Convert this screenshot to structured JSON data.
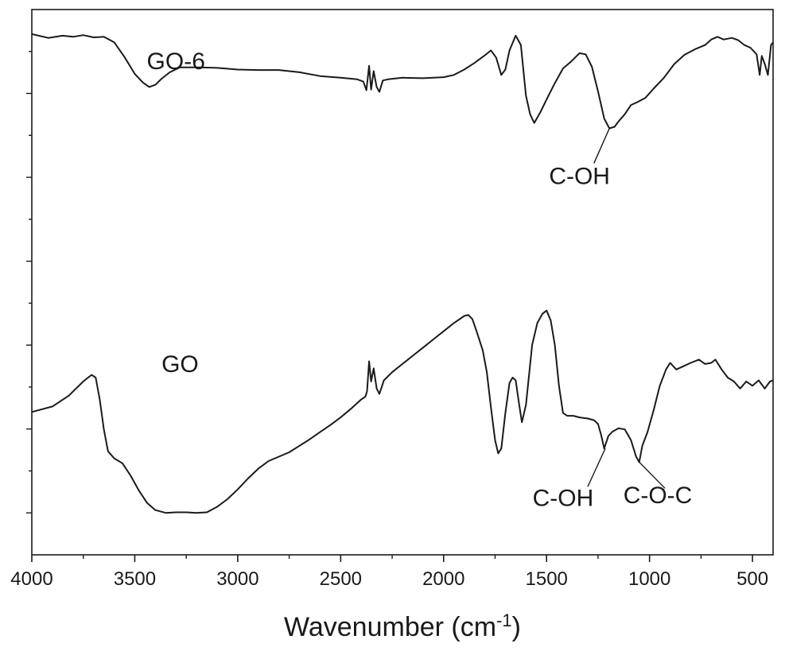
{
  "chart_data": {
    "type": "line",
    "title": "",
    "xlabel": "Wavenumber (cm",
    "xlabel_superscript": "-1",
    "xlabel_suffix": ")",
    "ylabel": "",
    "xlim": [
      4000,
      400
    ],
    "x_reversed": true,
    "y_tick_labels_shown": false,
    "grid": false,
    "x_ticks": [
      {
        "value": 4000,
        "label": "4000"
      },
      {
        "value": 3500,
        "label": "3500"
      },
      {
        "value": 3000,
        "label": "3000"
      },
      {
        "value": 2500,
        "label": "2500"
      },
      {
        "value": 2000,
        "label": "2000"
      },
      {
        "value": 1500,
        "label": "1500"
      },
      {
        "value": 1000,
        "label": "1000"
      },
      {
        "value": 500,
        "label": "500"
      }
    ],
    "line_color": "#1a1a1a",
    "series": [
      {
        "label_text": "GO-6",
        "label_x": 3300,
        "label_y": 0.891,
        "points": [
          [
            4000,
            0.955
          ],
          [
            3920,
            0.948
          ],
          [
            3850,
            0.952
          ],
          [
            3800,
            0.95
          ],
          [
            3750,
            0.953
          ],
          [
            3700,
            0.949
          ],
          [
            3650,
            0.95
          ],
          [
            3600,
            0.94
          ],
          [
            3550,
            0.913
          ],
          [
            3500,
            0.882
          ],
          [
            3460,
            0.866
          ],
          [
            3430,
            0.858
          ],
          [
            3400,
            0.862
          ],
          [
            3370,
            0.873
          ],
          [
            3330,
            0.885
          ],
          [
            3280,
            0.894
          ],
          [
            3200,
            0.894
          ],
          [
            3100,
            0.893
          ],
          [
            3000,
            0.89
          ],
          [
            2900,
            0.889
          ],
          [
            2800,
            0.889
          ],
          [
            2700,
            0.885
          ],
          [
            2600,
            0.878
          ],
          [
            2500,
            0.875
          ],
          [
            2420,
            0.872
          ],
          [
            2390,
            0.868
          ],
          [
            2375,
            0.852
          ],
          [
            2362,
            0.897
          ],
          [
            2352,
            0.853
          ],
          [
            2340,
            0.887
          ],
          [
            2325,
            0.858
          ],
          [
            2312,
            0.849
          ],
          [
            2295,
            0.87
          ],
          [
            2270,
            0.872
          ],
          [
            2200,
            0.875
          ],
          [
            2100,
            0.874
          ],
          [
            2000,
            0.876
          ],
          [
            1950,
            0.88
          ],
          [
            1900,
            0.89
          ],
          [
            1850,
            0.902
          ],
          [
            1800,
            0.916
          ],
          [
            1770,
            0.925
          ],
          [
            1745,
            0.912
          ],
          [
            1720,
            0.88
          ],
          [
            1700,
            0.89
          ],
          [
            1680,
            0.925
          ],
          [
            1650,
            0.952
          ],
          [
            1625,
            0.935
          ],
          [
            1600,
            0.842
          ],
          [
            1580,
            0.808
          ],
          [
            1560,
            0.792
          ],
          [
            1530,
            0.812
          ],
          [
            1500,
            0.835
          ],
          [
            1460,
            0.865
          ],
          [
            1420,
            0.892
          ],
          [
            1380,
            0.905
          ],
          [
            1340,
            0.92
          ],
          [
            1310,
            0.918
          ],
          [
            1280,
            0.895
          ],
          [
            1250,
            0.85
          ],
          [
            1220,
            0.8
          ],
          [
            1195,
            0.782
          ],
          [
            1170,
            0.785
          ],
          [
            1150,
            0.795
          ],
          [
            1120,
            0.808
          ],
          [
            1090,
            0.825
          ],
          [
            1060,
            0.83
          ],
          [
            1020,
            0.838
          ],
          [
            980,
            0.855
          ],
          [
            930,
            0.875
          ],
          [
            880,
            0.9
          ],
          [
            830,
            0.917
          ],
          [
            780,
            0.927
          ],
          [
            730,
            0.935
          ],
          [
            700,
            0.945
          ],
          [
            670,
            0.95
          ],
          [
            640,
            0.945
          ],
          [
            600,
            0.948
          ],
          [
            570,
            0.944
          ],
          [
            540,
            0.935
          ],
          [
            510,
            0.93
          ],
          [
            480,
            0.918
          ],
          [
            465,
            0.88
          ],
          [
            455,
            0.915
          ],
          [
            440,
            0.9
          ],
          [
            425,
            0.88
          ],
          [
            410,
            0.935
          ],
          [
            400,
            0.94
          ]
        ]
      },
      {
        "label_text": "GO",
        "label_x": 3280,
        "label_y": 0.335,
        "points": [
          [
            4000,
            0.262
          ],
          [
            3900,
            0.272
          ],
          [
            3820,
            0.292
          ],
          [
            3750,
            0.318
          ],
          [
            3710,
            0.33
          ],
          [
            3690,
            0.325
          ],
          [
            3670,
            0.285
          ],
          [
            3650,
            0.23
          ],
          [
            3630,
            0.19
          ],
          [
            3600,
            0.177
          ],
          [
            3560,
            0.168
          ],
          [
            3520,
            0.145
          ],
          [
            3480,
            0.118
          ],
          [
            3440,
            0.095
          ],
          [
            3400,
            0.082
          ],
          [
            3350,
            0.077
          ],
          [
            3300,
            0.078
          ],
          [
            3250,
            0.078
          ],
          [
            3200,
            0.077
          ],
          [
            3150,
            0.078
          ],
          [
            3100,
            0.088
          ],
          [
            3050,
            0.102
          ],
          [
            3000,
            0.12
          ],
          [
            2950,
            0.14
          ],
          [
            2900,
            0.158
          ],
          [
            2850,
            0.172
          ],
          [
            2800,
            0.18
          ],
          [
            2750,
            0.188
          ],
          [
            2700,
            0.2
          ],
          [
            2650,
            0.212
          ],
          [
            2600,
            0.225
          ],
          [
            2550,
            0.238
          ],
          [
            2500,
            0.252
          ],
          [
            2450,
            0.268
          ],
          [
            2400,
            0.285
          ],
          [
            2380,
            0.29
          ],
          [
            2372,
            0.3
          ],
          [
            2362,
            0.355
          ],
          [
            2352,
            0.318
          ],
          [
            2340,
            0.342
          ],
          [
            2325,
            0.305
          ],
          [
            2312,
            0.295
          ],
          [
            2290,
            0.32
          ],
          [
            2250,
            0.335
          ],
          [
            2200,
            0.35
          ],
          [
            2150,
            0.365
          ],
          [
            2100,
            0.38
          ],
          [
            2050,
            0.395
          ],
          [
            2000,
            0.41
          ],
          [
            1950,
            0.425
          ],
          [
            1900,
            0.438
          ],
          [
            1880,
            0.44
          ],
          [
            1860,
            0.432
          ],
          [
            1840,
            0.41
          ],
          [
            1810,
            0.375
          ],
          [
            1790,
            0.335
          ],
          [
            1770,
            0.27
          ],
          [
            1750,
            0.21
          ],
          [
            1735,
            0.186
          ],
          [
            1720,
            0.195
          ],
          [
            1700,
            0.26
          ],
          [
            1680,
            0.315
          ],
          [
            1665,
            0.325
          ],
          [
            1650,
            0.32
          ],
          [
            1635,
            0.28
          ],
          [
            1620,
            0.243
          ],
          [
            1600,
            0.275
          ],
          [
            1570,
            0.385
          ],
          [
            1545,
            0.425
          ],
          [
            1520,
            0.442
          ],
          [
            1500,
            0.448
          ],
          [
            1480,
            0.43
          ],
          [
            1460,
            0.385
          ],
          [
            1440,
            0.31
          ],
          [
            1420,
            0.26
          ],
          [
            1400,
            0.255
          ],
          [
            1370,
            0.255
          ],
          [
            1340,
            0.252
          ],
          [
            1300,
            0.25
          ],
          [
            1270,
            0.247
          ],
          [
            1250,
            0.24
          ],
          [
            1235,
            0.22
          ],
          [
            1220,
            0.195
          ],
          [
            1200,
            0.218
          ],
          [
            1180,
            0.226
          ],
          [
            1150,
            0.232
          ],
          [
            1120,
            0.23
          ],
          [
            1090,
            0.21
          ],
          [
            1065,
            0.18
          ],
          [
            1050,
            0.17
          ],
          [
            1035,
            0.2
          ],
          [
            1010,
            0.225
          ],
          [
            980,
            0.265
          ],
          [
            950,
            0.31
          ],
          [
            920,
            0.34
          ],
          [
            900,
            0.352
          ],
          [
            870,
            0.34
          ],
          [
            840,
            0.345
          ],
          [
            800,
            0.352
          ],
          [
            760,
            0.358
          ],
          [
            730,
            0.35
          ],
          [
            700,
            0.352
          ],
          [
            680,
            0.358
          ],
          [
            650,
            0.34
          ],
          [
            620,
            0.325
          ],
          [
            590,
            0.318
          ],
          [
            560,
            0.305
          ],
          [
            530,
            0.318
          ],
          [
            500,
            0.31
          ],
          [
            470,
            0.32
          ],
          [
            440,
            0.305
          ],
          [
            415,
            0.318
          ],
          [
            400,
            0.32
          ]
        ]
      }
    ],
    "annotations": [
      {
        "text": "C-OH",
        "x": 1195,
        "y": 0.782,
        "text_x": 1340,
        "text_y": 0.68,
        "line_to_x": 1270,
        "line_to_y": 0.718
      },
      {
        "text": "C-OH",
        "x": 1215,
        "y": 0.195,
        "text_x": 1420,
        "text_y": 0.09,
        "line_to_x": 1300,
        "line_to_y": 0.125
      },
      {
        "text": "C-O-C",
        "x": 1050,
        "y": 0.17,
        "text_x": 960,
        "text_y": 0.095,
        "line_to_x": 925,
        "line_to_y": 0.122
      }
    ]
  }
}
